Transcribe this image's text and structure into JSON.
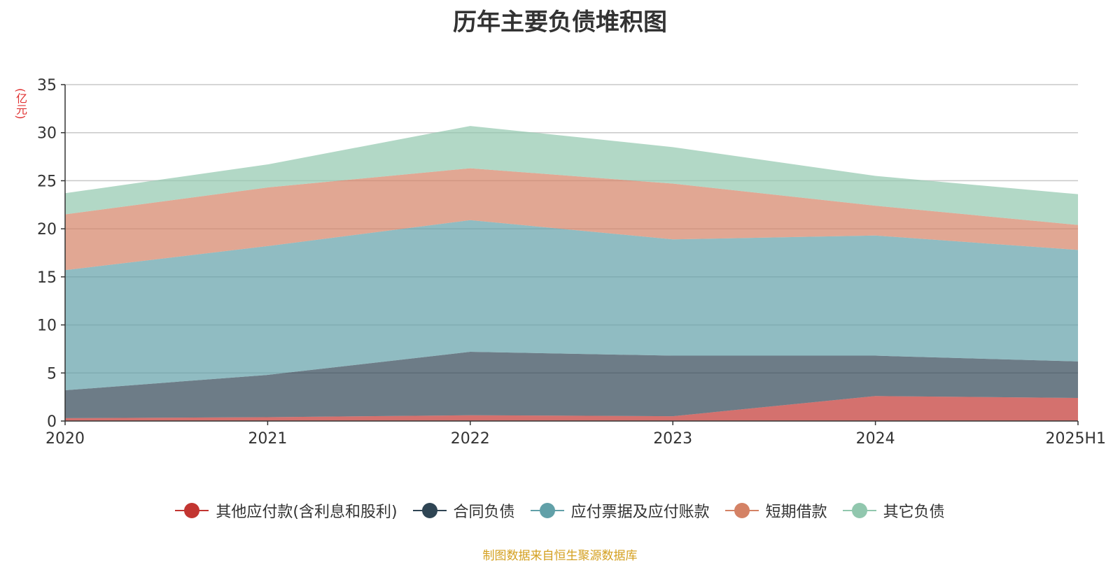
{
  "chart_data": {
    "type": "area",
    "stacked": true,
    "title": "历年主要负债堆积图",
    "y_unit_label": "亿元",
    "ylim": [
      0,
      35
    ],
    "y_ticks": [
      "0",
      "5",
      "10",
      "15",
      "20",
      "25",
      "30",
      "35"
    ],
    "grid": true,
    "legend_position": "bottom",
    "categories": [
      "2020",
      "2021",
      "2022",
      "2023",
      "2024",
      "2025H1"
    ],
    "series": [
      {
        "name": "其他应付款(含利息和股利)",
        "color": "#c23531",
        "values": [
          0.3,
          0.4,
          0.6,
          0.5,
          2.6,
          2.4
        ]
      },
      {
        "name": "合同负债",
        "color": "#2f4554",
        "values": [
          2.9,
          4.4,
          6.6,
          6.3,
          4.2,
          3.8
        ]
      },
      {
        "name": "应付票据及应付账款",
        "color": "#61a0a8",
        "values": [
          12.5,
          13.4,
          13.7,
          12.1,
          12.5,
          11.6
        ]
      },
      {
        "name": "短期借款",
        "color": "#d48265",
        "values": [
          5.8,
          6.1,
          5.4,
          5.8,
          3.1,
          2.6
        ]
      },
      {
        "name": "其它负债",
        "color": "#91c7ae",
        "values": [
          2.2,
          2.4,
          4.4,
          3.8,
          3.1,
          3.2
        ]
      }
    ]
  },
  "source_note": "制图数据来自恒生聚源数据库"
}
